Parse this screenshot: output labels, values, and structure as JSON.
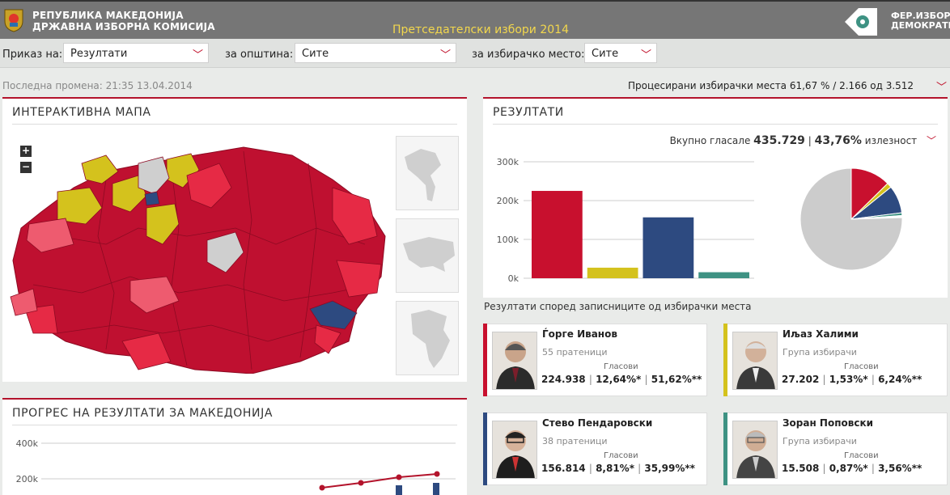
{
  "header": {
    "org_line1": "РЕПУБЛИКА МАКЕДОНИЈА",
    "org_line2": "ДРЖАВНА ИЗБОРНА КОМИСИЈА",
    "title": "Претседателски избори 2014",
    "brand_line1": "ФЕР.ИЗБОР.",
    "brand_line2": "ДЕМОКРАТИЈА."
  },
  "filters": {
    "view_label": "Приказ на:",
    "view_value": "Резултати",
    "municipality_label": "за општина:",
    "municipality_value": "Сите",
    "polling_label": "за избирачко место:",
    "polling_value": "Сите"
  },
  "status": {
    "last_change": "Последна промена: 21:35 13.04.2014",
    "processed": "Процесирани избирачки места 61,67 % / 2.166 од 3.512"
  },
  "map_panel": {
    "title": "ИНТЕРАКТИВНА МАПА",
    "zoom_in": "+",
    "zoom_out": "−"
  },
  "results_panel": {
    "title": "РЕЗУЛТАТИ",
    "turnout_prefix": "Вкупно гласале",
    "total_votes": "435.729",
    "separator": "|",
    "turnout_pct": "43,76%",
    "turnout_suffix": "излезност"
  },
  "progress_panel": {
    "title": "ПРОГРЕС НА РЕЗУЛТАТИ ЗА МАКЕДОНИЈА"
  },
  "candidates_heading": "Резултати според записниците од избирачки места",
  "candidates": [
    {
      "name": "Ѓорге Иванов",
      "party": "55 пратеници",
      "votes_label": "Гласови",
      "votes": "224.938",
      "pct1": "12,64%*",
      "pct2": "51,62%**",
      "color": "#c8102e"
    },
    {
      "name": "Иљаз Халими",
      "party": "Група избирачи",
      "votes_label": "Гласови",
      "votes": "27.202",
      "pct1": "1,53%*",
      "pct2": "6,24%**",
      "color": "#d4c21d"
    },
    {
      "name": "Стево Пендаровски",
      "party": "38 пратеници",
      "votes_label": "Гласови",
      "votes": "156.814",
      "pct1": "8,81%*",
      "pct2": "35,99%**",
      "color": "#2d4a80"
    },
    {
      "name": "Зоран Поповски",
      "party": "Група избирачи",
      "votes_label": "Гласови",
      "votes": "15.508",
      "pct1": "0,87%*",
      "pct2": "3,56%**",
      "color": "#3e9283"
    }
  ],
  "chart_data": [
    {
      "type": "bar",
      "categories": [
        "Ѓорге Иванов",
        "Иљаз Халими",
        "Стево Пендаровски",
        "Зоран Поповски"
      ],
      "values": [
        224938,
        27202,
        156814,
        15508
      ],
      "colors": [
        "#c8102e",
        "#d4c21d",
        "#2d4a80",
        "#3e9283"
      ],
      "yticks": [
        "0k",
        "100k",
        "200k",
        "300k"
      ],
      "ylim": [
        0,
        300000
      ],
      "grid": true
    },
    {
      "type": "pie",
      "slices": [
        {
          "value": 224938,
          "color": "#c8102e"
        },
        {
          "value": 27202,
          "color": "#d4c21d"
        },
        {
          "value": 156814,
          "color": "#2d4a80"
        },
        {
          "value": 15508,
          "color": "#3e9283"
        },
        {
          "value": 11267,
          "color": "#ffffff"
        },
        {
          "value": 1344202,
          "color": "#cccccc"
        }
      ]
    },
    {
      "type": "line",
      "yticks": [
        "400k",
        "200k"
      ],
      "series_color": "#b3132b"
    }
  ]
}
